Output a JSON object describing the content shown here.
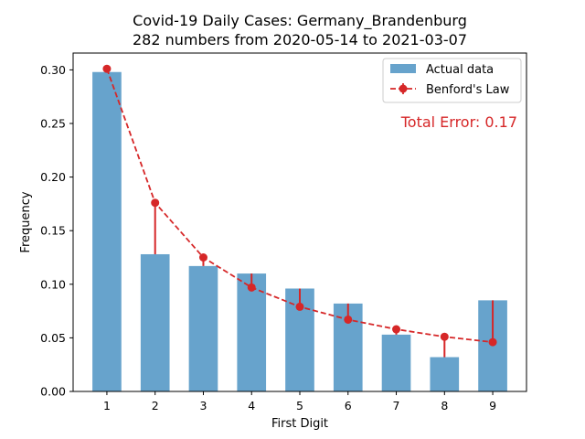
{
  "chart_data": {
    "type": "bar",
    "title": "Covid-19 Daily Cases: Germany_Brandenburg",
    "subtitle": "282 numbers from 2020-05-14 to 2021-03-07",
    "xlabel": "First Digit",
    "ylabel": "Frequency",
    "categories": [
      "1",
      "2",
      "3",
      "4",
      "5",
      "6",
      "7",
      "8",
      "9"
    ],
    "x": [
      1,
      2,
      3,
      4,
      5,
      6,
      7,
      8,
      9
    ],
    "xlim": [
      0.3,
      9.7
    ],
    "ylim": [
      0,
      0.3157
    ],
    "yticks": [
      0.0,
      0.05,
      0.1,
      0.15,
      0.2,
      0.25,
      0.3
    ],
    "ytick_labels": [
      "0.00",
      "0.05",
      "0.10",
      "0.15",
      "0.20",
      "0.25",
      "0.30"
    ],
    "grid": false,
    "legend_position": "top-right",
    "series": [
      {
        "name": "Actual data",
        "kind": "bar",
        "color": "#1f77b4",
        "values": [
          0.298,
          0.128,
          0.117,
          0.11,
          0.096,
          0.082,
          0.053,
          0.032,
          0.085
        ]
      },
      {
        "name": "Benford's Law",
        "kind": "line-dashed-markers-errorbars",
        "color": "#d62728",
        "values": [
          0.301,
          0.176,
          0.125,
          0.097,
          0.079,
          0.067,
          0.058,
          0.051,
          0.046
        ]
      }
    ],
    "annotation": {
      "text": "Total Error: 0.17",
      "color": "#d62728"
    }
  }
}
